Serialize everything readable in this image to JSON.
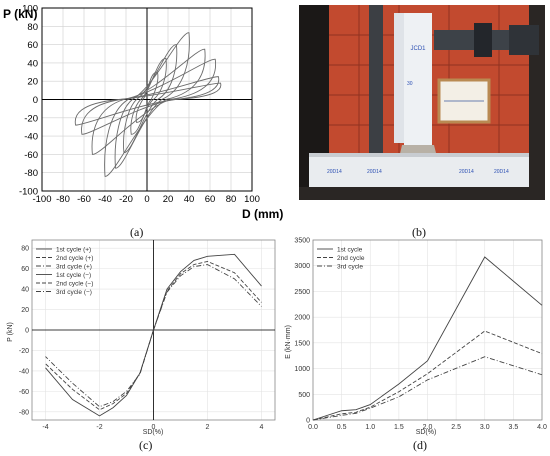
{
  "chart_data": [
    {
      "panel": "a",
      "type": "line",
      "ylabel": "P (kN)",
      "xlabel": "D (mm)",
      "xlim": [
        -100,
        100
      ],
      "ylim": [
        -100,
        100
      ],
      "xticks": [
        -100,
        -80,
        -60,
        -40,
        -20,
        0,
        20,
        40,
        60,
        80,
        100
      ],
      "yticks": [
        100,
        80,
        60,
        40,
        20,
        0,
        -20,
        -40,
        -60,
        -80,
        -100
      ],
      "grid": true,
      "series": [
        {
          "loops": [
            {
              "peak_pos": [
                10,
                30
              ],
              "peak_neg": [
                -10,
                -25
              ],
              "residual": [
                4,
                -4
              ]
            },
            {
              "peak_pos": [
                18,
                45
              ],
              "peak_neg": [
                -15,
                -38
              ],
              "residual": [
                6,
                -6
              ]
            },
            {
              "peak_pos": [
                28,
                60
              ],
              "peak_neg": [
                -22,
                -58
              ],
              "residual": [
                10,
                -10
              ]
            },
            {
              "peak_pos": [
                40,
                73
              ],
              "peak_neg": [
                -30,
                -75
              ],
              "residual": [
                14,
                -14
              ]
            },
            {
              "peak_pos": [
                55,
                55
              ],
              "peak_neg": [
                -40,
                -84
              ],
              "residual": [
                18,
                -18
              ]
            },
            {
              "peak_pos": [
                65,
                44
              ],
              "peak_neg": [
                -52,
                -60
              ],
              "residual": [
                22,
                -22
              ]
            },
            {
              "peak_pos": [
                68,
                25
              ],
              "peak_neg": [
                -62,
                -38
              ],
              "residual": [
                25,
                -25
              ]
            },
            {
              "peak_pos": [
                70,
                18
              ],
              "peak_neg": [
                -68,
                -28
              ],
              "residual": [
                27,
                -27
              ]
            }
          ]
        }
      ]
    },
    {
      "panel": "c",
      "type": "line",
      "ylabel": "P (kN)",
      "xlabel": "SD(%)",
      "xlim": [
        -4.5,
        4.5
      ],
      "ylim": [
        -88,
        88
      ],
      "xticks": [
        -4,
        -2,
        0,
        2,
        4
      ],
      "yticks": [
        80,
        60,
        40,
        20,
        0,
        -20,
        -40,
        -60,
        -80
      ],
      "grid": true,
      "legend": "top-left",
      "series": [
        {
          "name": "1st cycle (+)",
          "dash": "solid",
          "x": [
            0,
            0.5,
            1,
            1.5,
            2,
            3,
            4
          ],
          "values": [
            0,
            40,
            57,
            68,
            72,
            74,
            43
          ]
        },
        {
          "name": "2nd cycle (+)",
          "dash": "dashed",
          "x": [
            0,
            0.5,
            1,
            1.5,
            2,
            3,
            4
          ],
          "values": [
            0,
            38,
            55,
            64,
            67,
            56,
            27
          ]
        },
        {
          "name": "3rd cycle (+)",
          "dash": "dashdot",
          "x": [
            0,
            0.5,
            1,
            1.5,
            2,
            3,
            4
          ],
          "values": [
            0,
            37,
            53,
            62,
            64,
            50,
            23
          ]
        },
        {
          "name": "1st cycle (−)",
          "dash": "solid",
          "x": [
            0,
            -0.5,
            -1,
            -1.5,
            -2,
            -3,
            -4
          ],
          "values": [
            0,
            -42,
            -64,
            -76,
            -84,
            -68,
            -37
          ]
        },
        {
          "name": "2nd cycle (−)",
          "dash": "dashed",
          "x": [
            0,
            -0.5,
            -1,
            -1.5,
            -2,
            -3,
            -4
          ],
          "values": [
            0,
            -42,
            -62,
            -72,
            -78,
            -58,
            -33
          ]
        },
        {
          "name": "3rd cycle (−)",
          "dash": "dashdot",
          "x": [
            0,
            -0.5,
            -1,
            -1.5,
            -2,
            -3,
            -4
          ],
          "values": [
            0,
            -43,
            -60,
            -70,
            -75,
            -52,
            -26
          ]
        }
      ]
    },
    {
      "panel": "d",
      "type": "line",
      "ylabel": "E (kN·mm)",
      "xlabel": "SD(%)",
      "xlim": [
        0,
        4
      ],
      "ylim": [
        0,
        3500
      ],
      "xticks": [
        0.0,
        0.5,
        1.0,
        1.5,
        2.0,
        2.5,
        3.0,
        3.5,
        4.0
      ],
      "yticks": [
        3500,
        3000,
        2500,
        2000,
        1500,
        1000,
        500,
        0
      ],
      "grid": true,
      "legend": "top-left",
      "series": [
        {
          "name": "1st cycle",
          "dash": "solid",
          "x": [
            0,
            0.5,
            0.75,
            1,
            1.5,
            2,
            3,
            4
          ],
          "values": [
            0,
            180,
            200,
            300,
            700,
            1150,
            3170,
            2230
          ]
        },
        {
          "name": "2nd cycle",
          "dash": "dashed",
          "x": [
            0,
            0.5,
            0.75,
            1,
            1.5,
            2,
            3,
            4
          ],
          "values": [
            0,
            120,
            150,
            250,
            550,
            900,
            1730,
            1290
          ]
        },
        {
          "name": "3rd cycle",
          "dash": "dashdot",
          "x": [
            0,
            0.5,
            0.75,
            1,
            1.5,
            2,
            3,
            4
          ],
          "values": [
            0,
            90,
            130,
            230,
            450,
            780,
            1230,
            880
          ]
        }
      ]
    }
  ],
  "captions": {
    "a": "(a)",
    "b": "(b)",
    "c": "(c)",
    "d": "(d)"
  },
  "photo": {
    "column_labels": [
      "JCD1",
      "30"
    ],
    "tags": [
      "20D14",
      "20D14",
      "20D14",
      "20D14"
    ],
    "colors": {
      "wall": "#c24a2f",
      "concrete": "#e9ecef",
      "bg": "#2a2624"
    }
  }
}
